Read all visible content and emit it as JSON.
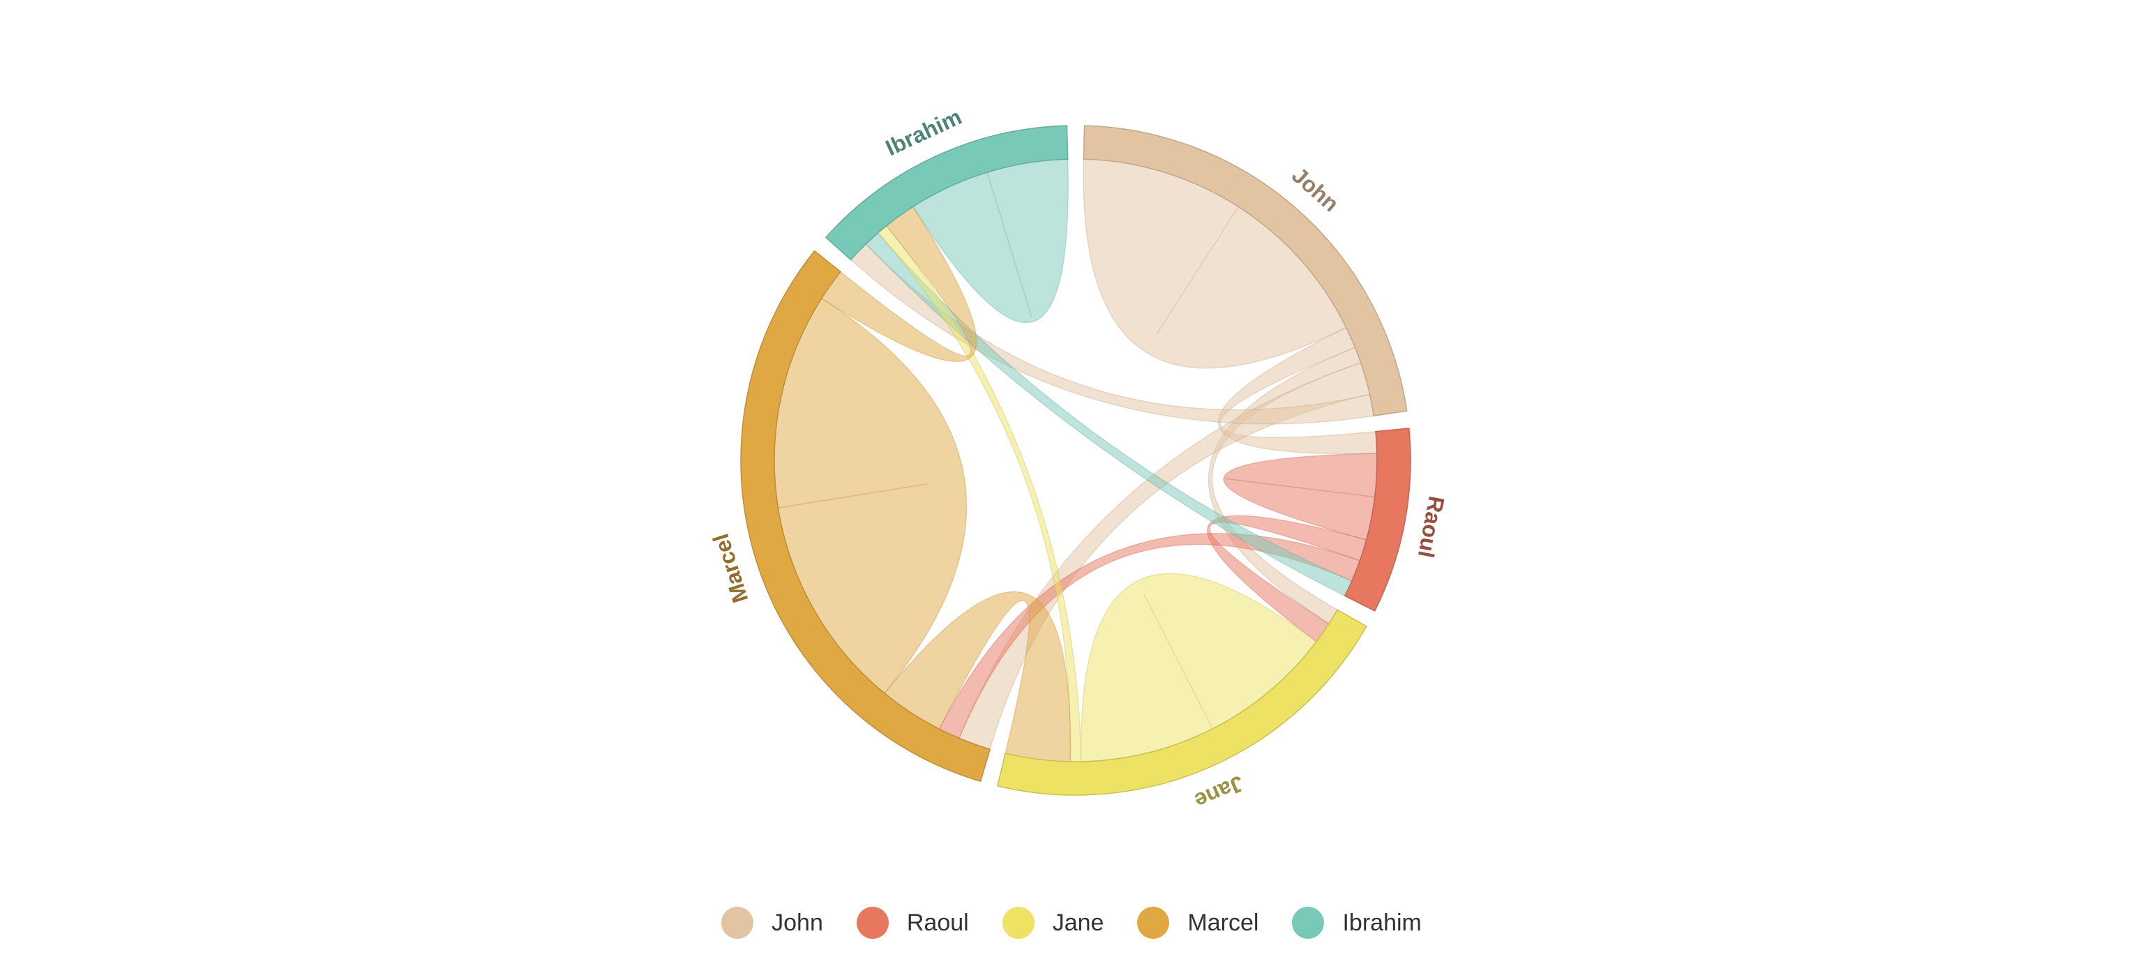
{
  "chart_data": {
    "type": "chord",
    "groups": [
      {
        "name": "John",
        "color": "#e3c4a2"
      },
      {
        "name": "Raoul",
        "color": "#e8775f"
      },
      {
        "name": "Jane",
        "color": "#ede264"
      },
      {
        "name": "Marcel",
        "color": "#e0a843"
      },
      {
        "name": "Ibrahim",
        "color": "#79c9b9"
      }
    ],
    "links": [
      {
        "from": "John",
        "to": "John",
        "value": 30
      },
      {
        "from": "John",
        "to": "Raoul",
        "value": 4
      },
      {
        "from": "John",
        "to": "Jane",
        "value": 3
      },
      {
        "from": "John",
        "to": "Marcel",
        "value": 6
      },
      {
        "from": "John",
        "to": "Ibrahim",
        "value": 4
      },
      {
        "from": "Raoul",
        "to": "Raoul",
        "value": 8
      },
      {
        "from": "Raoul",
        "to": "Jane",
        "value": 4
      },
      {
        "from": "Raoul",
        "to": "Marcel",
        "value": 4
      },
      {
        "from": "Ibrahim",
        "to": "Raoul",
        "value": 3
      },
      {
        "from": "Jane",
        "to": "Jane",
        "value": 25
      },
      {
        "from": "Jane",
        "to": "Ibrahim",
        "value": 2
      },
      {
        "from": "Marcel",
        "to": "Jane",
        "value": 12
      },
      {
        "from": "Marcel",
        "to": "Marcel",
        "value": 40
      },
      {
        "from": "Marcel",
        "to": "Ibrahim",
        "value": 6
      },
      {
        "from": "Ibrahim",
        "to": "Ibrahim",
        "value": 15
      }
    ],
    "legend": true
  }
}
